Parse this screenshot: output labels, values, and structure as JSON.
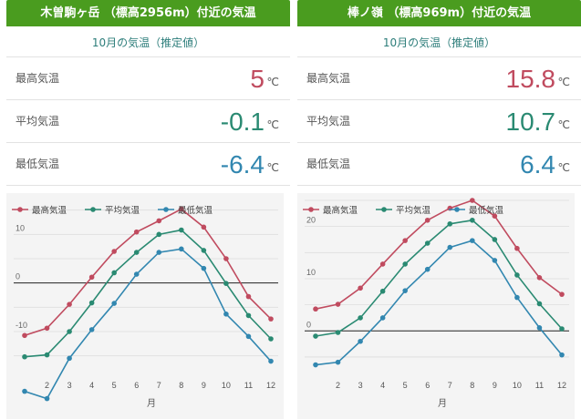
{
  "panels": [
    {
      "title": "木曽駒ヶ岳 （標高2956m）付近の気温",
      "subtitle": "10月の気温（推定値）",
      "rows": [
        {
          "label": "最高気温",
          "value": "5",
          "unit": "℃",
          "color": "#c04b5f"
        },
        {
          "label": "平均気温",
          "value": "-0.1",
          "unit": "℃",
          "color": "#2a8a72"
        },
        {
          "label": "最低気温",
          "value": "-6.4",
          "unit": "℃",
          "color": "#3287b0"
        }
      ]
    },
    {
      "title": "棒ノ嶺 （標高969m）付近の気温",
      "subtitle": "10月の気温（推定値）",
      "rows": [
        {
          "label": "最高気温",
          "value": "15.8",
          "unit": "℃",
          "color": "#c04b5f"
        },
        {
          "label": "平均気温",
          "value": "10.7",
          "unit": "℃",
          "color": "#2a8a72"
        },
        {
          "label": "最低気温",
          "value": "6.4",
          "unit": "℃",
          "color": "#3287b0"
        }
      ]
    }
  ],
  "chart_data": [
    {
      "type": "line",
      "x": [
        1,
        2,
        3,
        4,
        5,
        6,
        7,
        8,
        9,
        10,
        11,
        12
      ],
      "xticks": [
        "2",
        "4",
        "6",
        "8",
        "10",
        "12",
        "3",
        "5",
        "7",
        "9",
        "11"
      ],
      "xtick_values": [
        2,
        3,
        4,
        5,
        6,
        7,
        8,
        9,
        10,
        11,
        12
      ],
      "xtick_labels": [
        "2",
        "3",
        "4",
        "5",
        "6",
        "7",
        "8",
        "9",
        "10",
        "11",
        "12"
      ],
      "xlabel": "月",
      "ylabel": "",
      "yticks": [
        10,
        0,
        -10
      ],
      "ylim": [
        -19,
        17
      ],
      "grid": true,
      "legend": "top-left",
      "series": [
        {
          "name": "最高気温",
          "color": "#c04b5f",
          "values": [
            -10.8,
            -9.3,
            -4.4,
            1.2,
            6.5,
            10.5,
            12.8,
            15.2,
            11.5,
            5.0,
            -2.8,
            -7.4
          ]
        },
        {
          "name": "平均気温",
          "color": "#2a8a72",
          "values": [
            -15.2,
            -14.8,
            -10.0,
            -4.1,
            2.1,
            6.3,
            10.0,
            10.9,
            6.7,
            -0.1,
            -6.7,
            -11.5
          ]
        },
        {
          "name": "最低気温",
          "color": "#3287b0",
          "values": [
            -22.3,
            -23.8,
            -15.5,
            -9.6,
            -4.2,
            1.8,
            6.3,
            7.0,
            3.0,
            -6.4,
            -11.0,
            -16.1
          ]
        }
      ]
    },
    {
      "type": "line",
      "x": [
        1,
        2,
        3,
        4,
        5,
        6,
        7,
        8,
        9,
        10,
        11,
        12
      ],
      "xtick_values": [
        2,
        3,
        4,
        5,
        6,
        7,
        8,
        9,
        10,
        11,
        12
      ],
      "xtick_labels": [
        "2",
        "3",
        "4",
        "5",
        "6",
        "7",
        "8",
        "9",
        "10",
        "11",
        "12"
      ],
      "xlabel": "月",
      "ylabel": "",
      "yticks": [
        20,
        10,
        0
      ],
      "ylim": [
        -8.5,
        25
      ],
      "grid": true,
      "legend": "top-left",
      "series": [
        {
          "name": "最高気温",
          "color": "#c04b5f",
          "values": [
            4.2,
            5.1,
            8.2,
            12.8,
            17.3,
            21.2,
            23.5,
            25.0,
            22.0,
            15.8,
            10.2,
            7.0
          ]
        },
        {
          "name": "平均気温",
          "color": "#2a8a72",
          "values": [
            -1.0,
            -0.3,
            2.5,
            7.6,
            12.8,
            16.8,
            20.5,
            21.2,
            17.5,
            10.7,
            5.2,
            0.4
          ]
        },
        {
          "name": "最低気温",
          "color": "#3287b0",
          "values": [
            -6.5,
            -6.0,
            -2.0,
            2.5,
            7.7,
            11.8,
            16.0,
            17.3,
            13.5,
            6.4,
            0.6,
            -4.6
          ]
        }
      ]
    }
  ]
}
